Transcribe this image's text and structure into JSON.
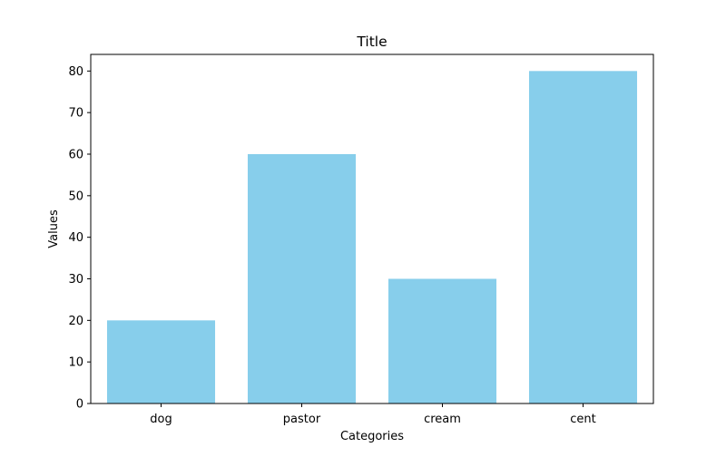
{
  "chart_data": {
    "type": "bar",
    "title": "Title",
    "xlabel": "Categories",
    "ylabel": "Values",
    "categories": [
      "dog",
      "pastor",
      "cream",
      "cent"
    ],
    "values": [
      20,
      60,
      30,
      80
    ],
    "ylim": [
      0,
      84
    ],
    "yticks": [
      0,
      10,
      20,
      30,
      40,
      50,
      60,
      70,
      80
    ],
    "ytick_labels": [
      "0",
      "10",
      "20",
      "30",
      "40",
      "50",
      "60",
      "70",
      "80"
    ],
    "grid": false,
    "legend": false,
    "colors": {
      "bar": "#87ceeb",
      "axis": "#000000",
      "background": "#ffffff"
    }
  }
}
